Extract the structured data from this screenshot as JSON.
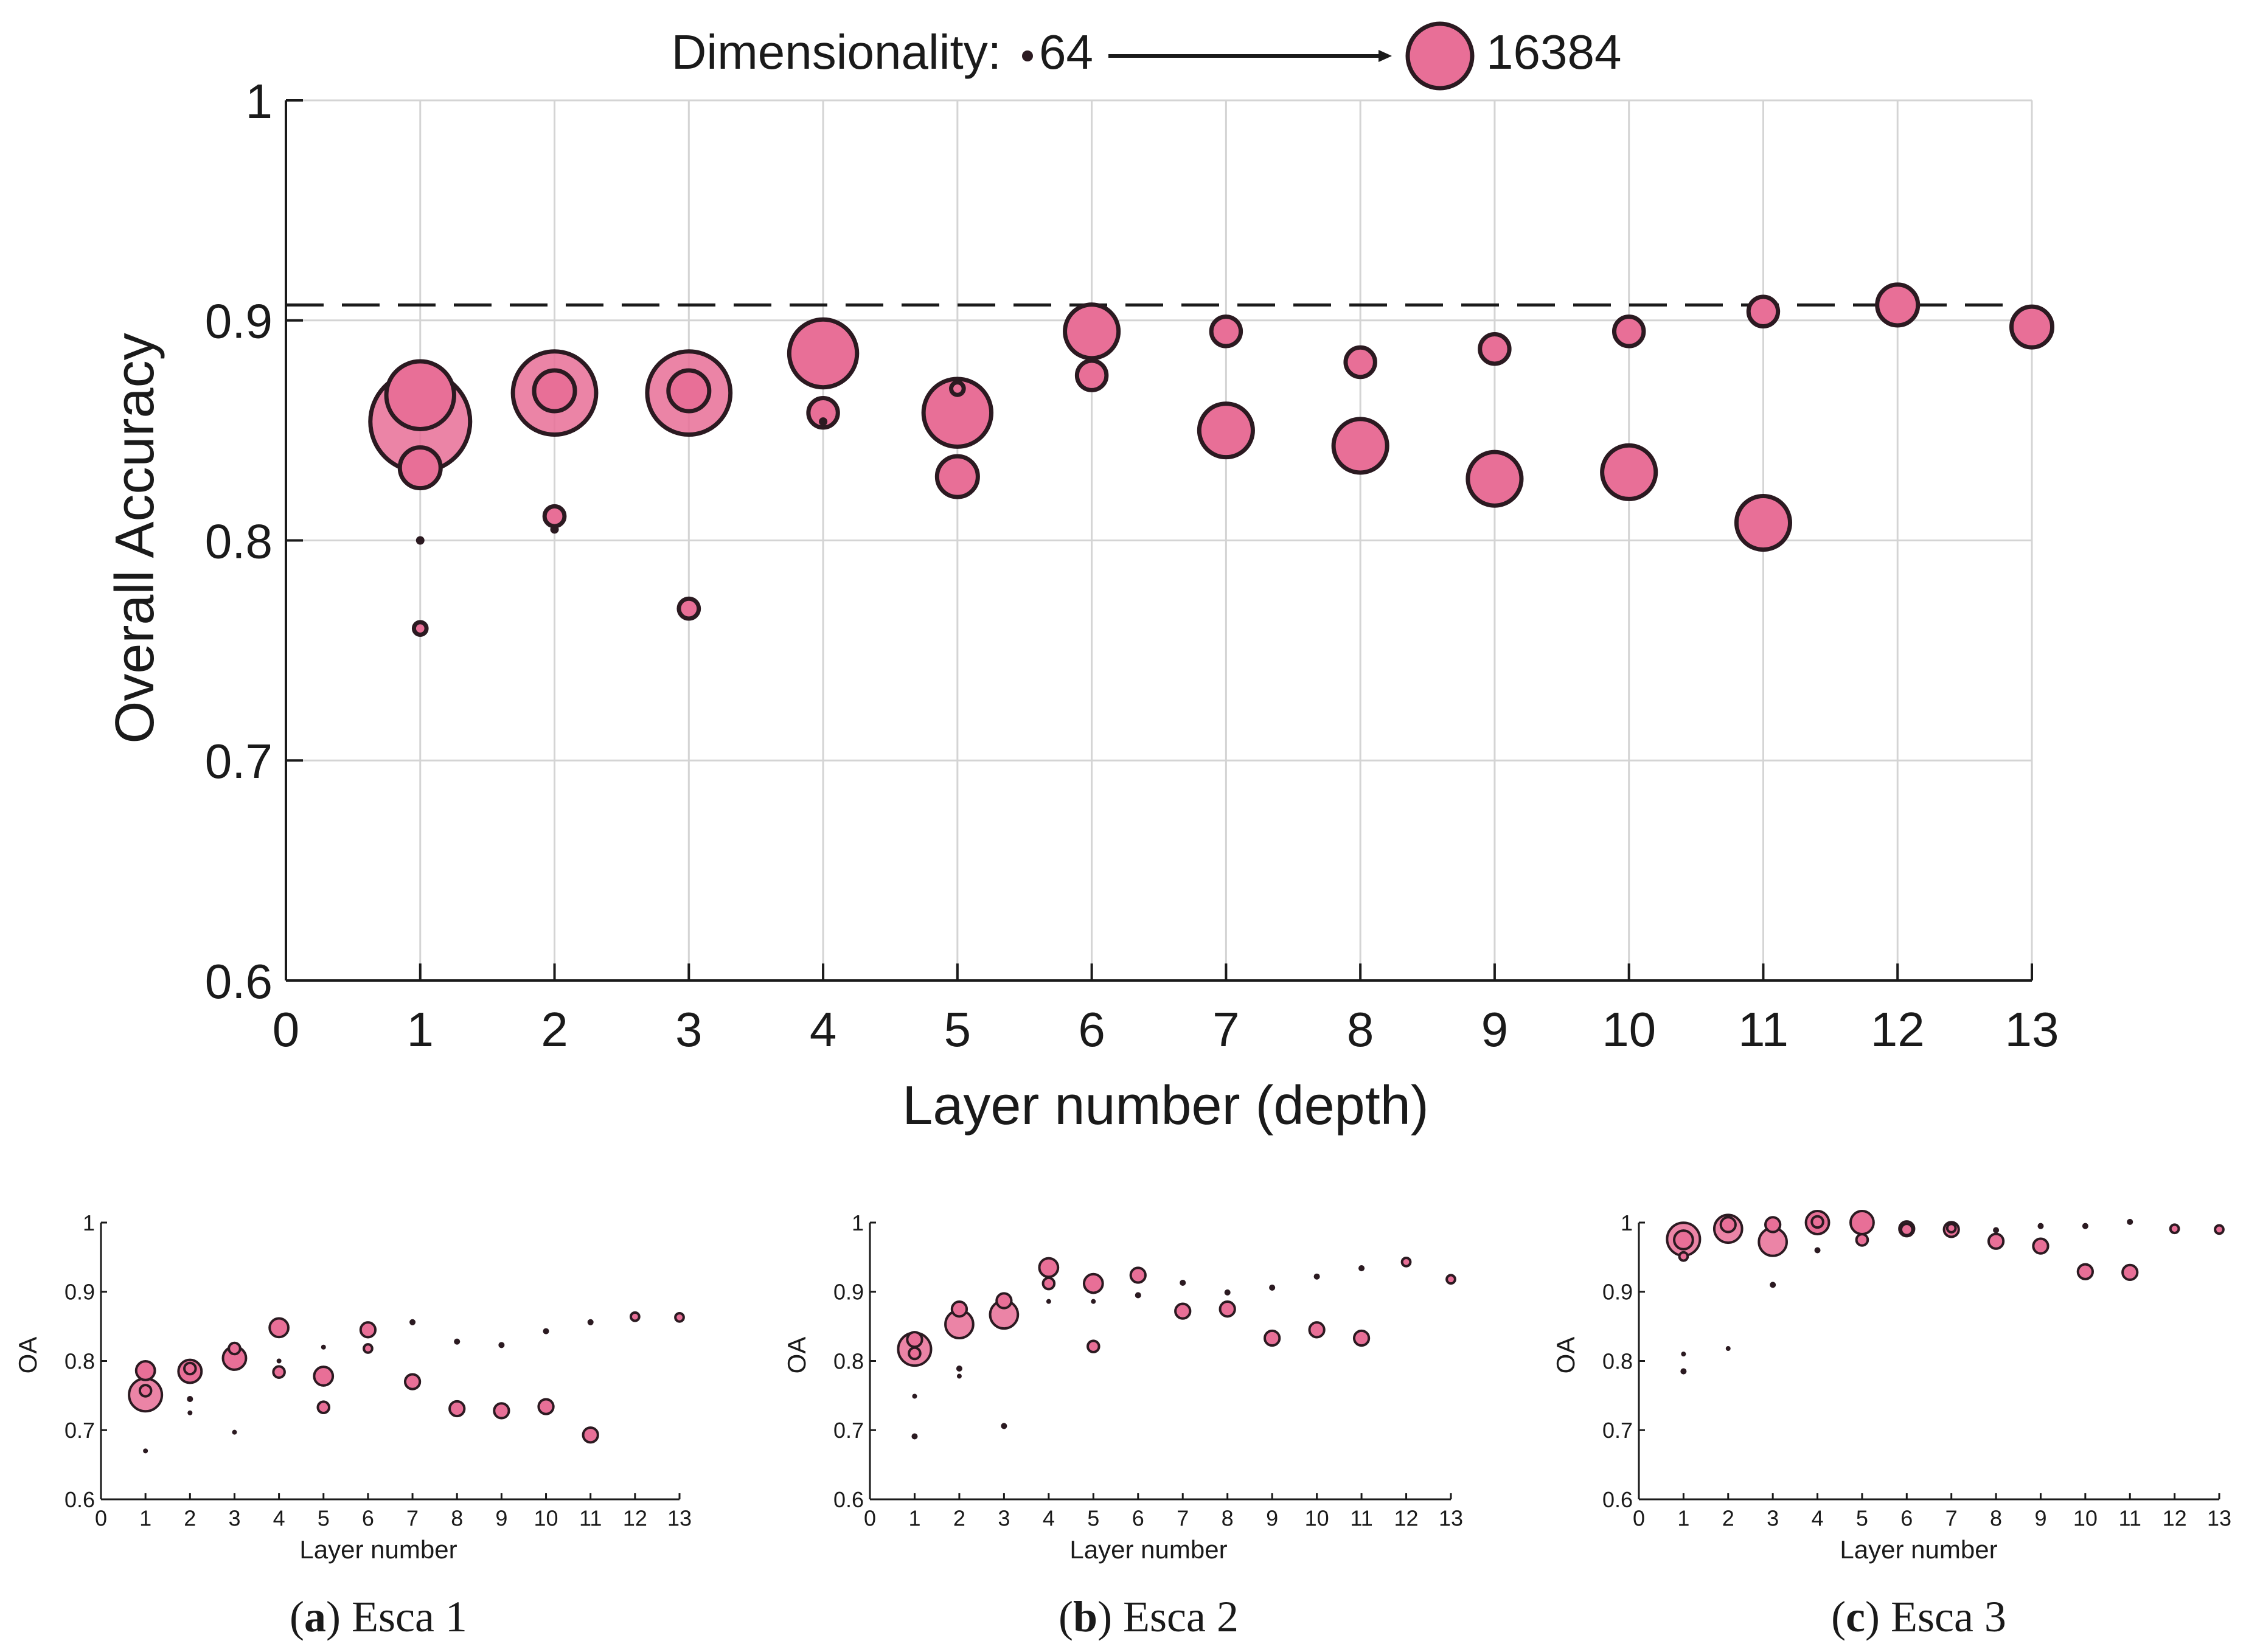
{
  "colors": {
    "marker_fill": "#e86f97",
    "marker_edge": "#2b1a21",
    "axis": "#1a1a1a",
    "grid": "#d4d4d4"
  },
  "legend": {
    "label": "Dimensionality:",
    "min_label": "64",
    "max_label": "16384",
    "min_value": 64,
    "max_value": 16384
  },
  "captions": [
    {
      "letter": "a",
      "name": "Esca 1"
    },
    {
      "letter": "b",
      "name": "Esca 2"
    },
    {
      "letter": "c",
      "name": "Esca 3"
    }
  ],
  "chart_data": [
    {
      "id": "main",
      "type": "scatter",
      "xlabel": "Layer number (depth)",
      "ylabel": "Overall Accuracy",
      "xlim": [
        0,
        13
      ],
      "ylim": [
        0.6,
        1
      ],
      "xticks": [
        0,
        1,
        2,
        3,
        4,
        5,
        6,
        7,
        8,
        9,
        10,
        11,
        12,
        13
      ],
      "yticks": [
        0.6,
        0.7,
        0.8,
        0.9,
        1
      ],
      "ytick_labels": [
        "0.6",
        "0.7",
        "0.8",
        "0.9",
        "1"
      ],
      "grid": true,
      "reference_line": {
        "y": 0.907,
        "style": "dashed"
      },
      "points": [
        {
          "x": 1,
          "y": 0.854,
          "dim": 16384
        },
        {
          "x": 1,
          "y": 0.866,
          "dim": 4096
        },
        {
          "x": 1,
          "y": 0.833,
          "dim": 1024
        },
        {
          "x": 1,
          "y": 0.8,
          "dim": 64
        },
        {
          "x": 1,
          "y": 0.76,
          "dim": 128
        },
        {
          "x": 2,
          "y": 0.867,
          "dim": 8192
        },
        {
          "x": 2,
          "y": 0.868,
          "dim": 1024
        },
        {
          "x": 2,
          "y": 0.811,
          "dim": 256
        },
        {
          "x": 2,
          "y": 0.805,
          "dim": 64
        },
        {
          "x": 3,
          "y": 0.867,
          "dim": 8192
        },
        {
          "x": 3,
          "y": 0.868,
          "dim": 1024
        },
        {
          "x": 3,
          "y": 0.769,
          "dim": 256
        },
        {
          "x": 4,
          "y": 0.885,
          "dim": 4096
        },
        {
          "x": 4,
          "y": 0.858,
          "dim": 512
        },
        {
          "x": 4,
          "y": 0.854,
          "dim": 64
        },
        {
          "x": 5,
          "y": 0.858,
          "dim": 4096
        },
        {
          "x": 5,
          "y": 0.869,
          "dim": 128
        },
        {
          "x": 5,
          "y": 0.829,
          "dim": 1024
        },
        {
          "x": 6,
          "y": 0.895,
          "dim": 2048
        },
        {
          "x": 6,
          "y": 0.875,
          "dim": 512
        },
        {
          "x": 7,
          "y": 0.895,
          "dim": 512
        },
        {
          "x": 7,
          "y": 0.85,
          "dim": 2048
        },
        {
          "x": 8,
          "y": 0.881,
          "dim": 512
        },
        {
          "x": 8,
          "y": 0.843,
          "dim": 2048
        },
        {
          "x": 9,
          "y": 0.887,
          "dim": 512
        },
        {
          "x": 9,
          "y": 0.828,
          "dim": 2048
        },
        {
          "x": 10,
          "y": 0.895,
          "dim": 512
        },
        {
          "x": 10,
          "y": 0.831,
          "dim": 2048
        },
        {
          "x": 11,
          "y": 0.904,
          "dim": 512
        },
        {
          "x": 11,
          "y": 0.808,
          "dim": 2048
        },
        {
          "x": 12,
          "y": 0.907,
          "dim": 1024
        },
        {
          "x": 13,
          "y": 0.897,
          "dim": 1024
        }
      ]
    },
    {
      "id": "esca1",
      "type": "scatter",
      "xlabel": "Layer number",
      "ylabel": "OA",
      "xlim": [
        0,
        13
      ],
      "ylim": [
        0.6,
        1
      ],
      "xticks": [
        0,
        1,
        2,
        3,
        4,
        5,
        6,
        7,
        8,
        9,
        10,
        11,
        12,
        13
      ],
      "yticks": [
        0.6,
        0.7,
        0.8,
        0.9,
        1
      ],
      "ytick_labels": [
        "0.6",
        "0.7",
        "0.8",
        "0.9",
        "1"
      ],
      "grid": false,
      "points": [
        {
          "x": 1,
          "y": 0.751,
          "dim": 16384
        },
        {
          "x": 1,
          "y": 0.786,
          "dim": 2048
        },
        {
          "x": 1,
          "y": 0.757,
          "dim": 512
        },
        {
          "x": 1,
          "y": 0.67,
          "dim": 64
        },
        {
          "x": 2,
          "y": 0.785,
          "dim": 4096
        },
        {
          "x": 2,
          "y": 0.789,
          "dim": 512
        },
        {
          "x": 2,
          "y": 0.745,
          "dim": 128
        },
        {
          "x": 2,
          "y": 0.725,
          "dim": 64
        },
        {
          "x": 3,
          "y": 0.804,
          "dim": 4096
        },
        {
          "x": 3,
          "y": 0.818,
          "dim": 512
        },
        {
          "x": 3,
          "y": 0.697,
          "dim": 64
        },
        {
          "x": 4,
          "y": 0.848,
          "dim": 2048
        },
        {
          "x": 4,
          "y": 0.8,
          "dim": 64
        },
        {
          "x": 4,
          "y": 0.784,
          "dim": 512
        },
        {
          "x": 5,
          "y": 0.778,
          "dim": 2048
        },
        {
          "x": 5,
          "y": 0.82,
          "dim": 64
        },
        {
          "x": 5,
          "y": 0.733,
          "dim": 512
        },
        {
          "x": 6,
          "y": 0.845,
          "dim": 1024
        },
        {
          "x": 6,
          "y": 0.818,
          "dim": 256
        },
        {
          "x": 7,
          "y": 0.856,
          "dim": 128
        },
        {
          "x": 7,
          "y": 0.77,
          "dim": 1024
        },
        {
          "x": 8,
          "y": 0.828,
          "dim": 128
        },
        {
          "x": 8,
          "y": 0.731,
          "dim": 1024
        },
        {
          "x": 9,
          "y": 0.823,
          "dim": 128
        },
        {
          "x": 9,
          "y": 0.728,
          "dim": 1024
        },
        {
          "x": 10,
          "y": 0.843,
          "dim": 128
        },
        {
          "x": 10,
          "y": 0.734,
          "dim": 1024
        },
        {
          "x": 11,
          "y": 0.856,
          "dim": 128
        },
        {
          "x": 11,
          "y": 0.693,
          "dim": 1024
        },
        {
          "x": 12,
          "y": 0.864,
          "dim": 256
        },
        {
          "x": 13,
          "y": 0.863,
          "dim": 256
        }
      ]
    },
    {
      "id": "esca2",
      "type": "scatter",
      "xlabel": "Layer number",
      "ylabel": "OA",
      "xlim": [
        0,
        13
      ],
      "ylim": [
        0.6,
        1
      ],
      "xticks": [
        0,
        1,
        2,
        3,
        4,
        5,
        6,
        7,
        8,
        9,
        10,
        11,
        12,
        13
      ],
      "yticks": [
        0.6,
        0.7,
        0.8,
        0.9,
        1
      ],
      "ytick_labels": [
        "0.6",
        "0.7",
        "0.8",
        "0.9",
        "1"
      ],
      "grid": false,
      "points": [
        {
          "x": 1,
          "y": 0.817,
          "dim": 16384
        },
        {
          "x": 1,
          "y": 0.831,
          "dim": 1024
        },
        {
          "x": 1,
          "y": 0.811,
          "dim": 512
        },
        {
          "x": 1,
          "y": 0.749,
          "dim": 64
        },
        {
          "x": 1,
          "y": 0.691,
          "dim": 128
        },
        {
          "x": 2,
          "y": 0.853,
          "dim": 8192
        },
        {
          "x": 2,
          "y": 0.875,
          "dim": 1024
        },
        {
          "x": 2,
          "y": 0.789,
          "dim": 128
        },
        {
          "x": 2,
          "y": 0.778,
          "dim": 64
        },
        {
          "x": 3,
          "y": 0.867,
          "dim": 8192
        },
        {
          "x": 3,
          "y": 0.887,
          "dim": 1024
        },
        {
          "x": 3,
          "y": 0.706,
          "dim": 128
        },
        {
          "x": 4,
          "y": 0.935,
          "dim": 2048
        },
        {
          "x": 4,
          "y": 0.912,
          "dim": 512
        },
        {
          "x": 4,
          "y": 0.886,
          "dim": 64
        },
        {
          "x": 5,
          "y": 0.912,
          "dim": 2048
        },
        {
          "x": 5,
          "y": 0.886,
          "dim": 64
        },
        {
          "x": 5,
          "y": 0.821,
          "dim": 512
        },
        {
          "x": 6,
          "y": 0.924,
          "dim": 1024
        },
        {
          "x": 6,
          "y": 0.895,
          "dim": 128
        },
        {
          "x": 7,
          "y": 0.913,
          "dim": 128
        },
        {
          "x": 7,
          "y": 0.872,
          "dim": 1024
        },
        {
          "x": 8,
          "y": 0.899,
          "dim": 128
        },
        {
          "x": 8,
          "y": 0.875,
          "dim": 1024
        },
        {
          "x": 9,
          "y": 0.906,
          "dim": 128
        },
        {
          "x": 9,
          "y": 0.833,
          "dim": 1024
        },
        {
          "x": 10,
          "y": 0.922,
          "dim": 128
        },
        {
          "x": 10,
          "y": 0.845,
          "dim": 1024
        },
        {
          "x": 11,
          "y": 0.934,
          "dim": 128
        },
        {
          "x": 11,
          "y": 0.833,
          "dim": 1024
        },
        {
          "x": 12,
          "y": 0.943,
          "dim": 256
        },
        {
          "x": 13,
          "y": 0.918,
          "dim": 256
        }
      ]
    },
    {
      "id": "esca3",
      "type": "scatter",
      "xlabel": "Layer number",
      "ylabel": "OA",
      "xlim": [
        0,
        13
      ],
      "ylim": [
        0.6,
        1
      ],
      "xticks": [
        0,
        1,
        2,
        3,
        4,
        5,
        6,
        7,
        8,
        9,
        10,
        11,
        12,
        13
      ],
      "yticks": [
        0.6,
        0.7,
        0.8,
        0.9,
        1
      ],
      "ytick_labels": [
        "0.6",
        "0.7",
        "0.8",
        "0.9",
        "1"
      ],
      "grid": false,
      "points": [
        {
          "x": 1,
          "y": 0.976,
          "dim": 16384
        },
        {
          "x": 1,
          "y": 0.975,
          "dim": 2048
        },
        {
          "x": 1,
          "y": 0.951,
          "dim": 256
        },
        {
          "x": 1,
          "y": 0.81,
          "dim": 64
        },
        {
          "x": 1,
          "y": 0.785,
          "dim": 128
        },
        {
          "x": 2,
          "y": 0.991,
          "dim": 8192
        },
        {
          "x": 2,
          "y": 0.997,
          "dim": 1024
        },
        {
          "x": 2,
          "y": 0.818,
          "dim": 64
        },
        {
          "x": 3,
          "y": 0.972,
          "dim": 8192
        },
        {
          "x": 3,
          "y": 0.997,
          "dim": 1024
        },
        {
          "x": 3,
          "y": 0.91,
          "dim": 128
        },
        {
          "x": 4,
          "y": 1.0,
          "dim": 4096
        },
        {
          "x": 4,
          "y": 1.001,
          "dim": 512
        },
        {
          "x": 4,
          "y": 0.96,
          "dim": 128
        },
        {
          "x": 5,
          "y": 1.0,
          "dim": 4096
        },
        {
          "x": 5,
          "y": 0.975,
          "dim": 512
        },
        {
          "x": 6,
          "y": 0.991,
          "dim": 1024
        },
        {
          "x": 6,
          "y": 0.99,
          "dim": 512
        },
        {
          "x": 7,
          "y": 0.99,
          "dim": 1024
        },
        {
          "x": 7,
          "y": 0.992,
          "dim": 256
        },
        {
          "x": 8,
          "y": 0.973,
          "dim": 1024
        },
        {
          "x": 8,
          "y": 0.989,
          "dim": 128
        },
        {
          "x": 9,
          "y": 0.966,
          "dim": 1024
        },
        {
          "x": 9,
          "y": 0.995,
          "dim": 128
        },
        {
          "x": 10,
          "y": 0.929,
          "dim": 1024
        },
        {
          "x": 10,
          "y": 0.995,
          "dim": 128
        },
        {
          "x": 11,
          "y": 0.928,
          "dim": 1024
        },
        {
          "x": 11,
          "y": 1.001,
          "dim": 128
        },
        {
          "x": 12,
          "y": 0.991,
          "dim": 256
        },
        {
          "x": 13,
          "y": 0.99,
          "dim": 256
        }
      ]
    }
  ]
}
